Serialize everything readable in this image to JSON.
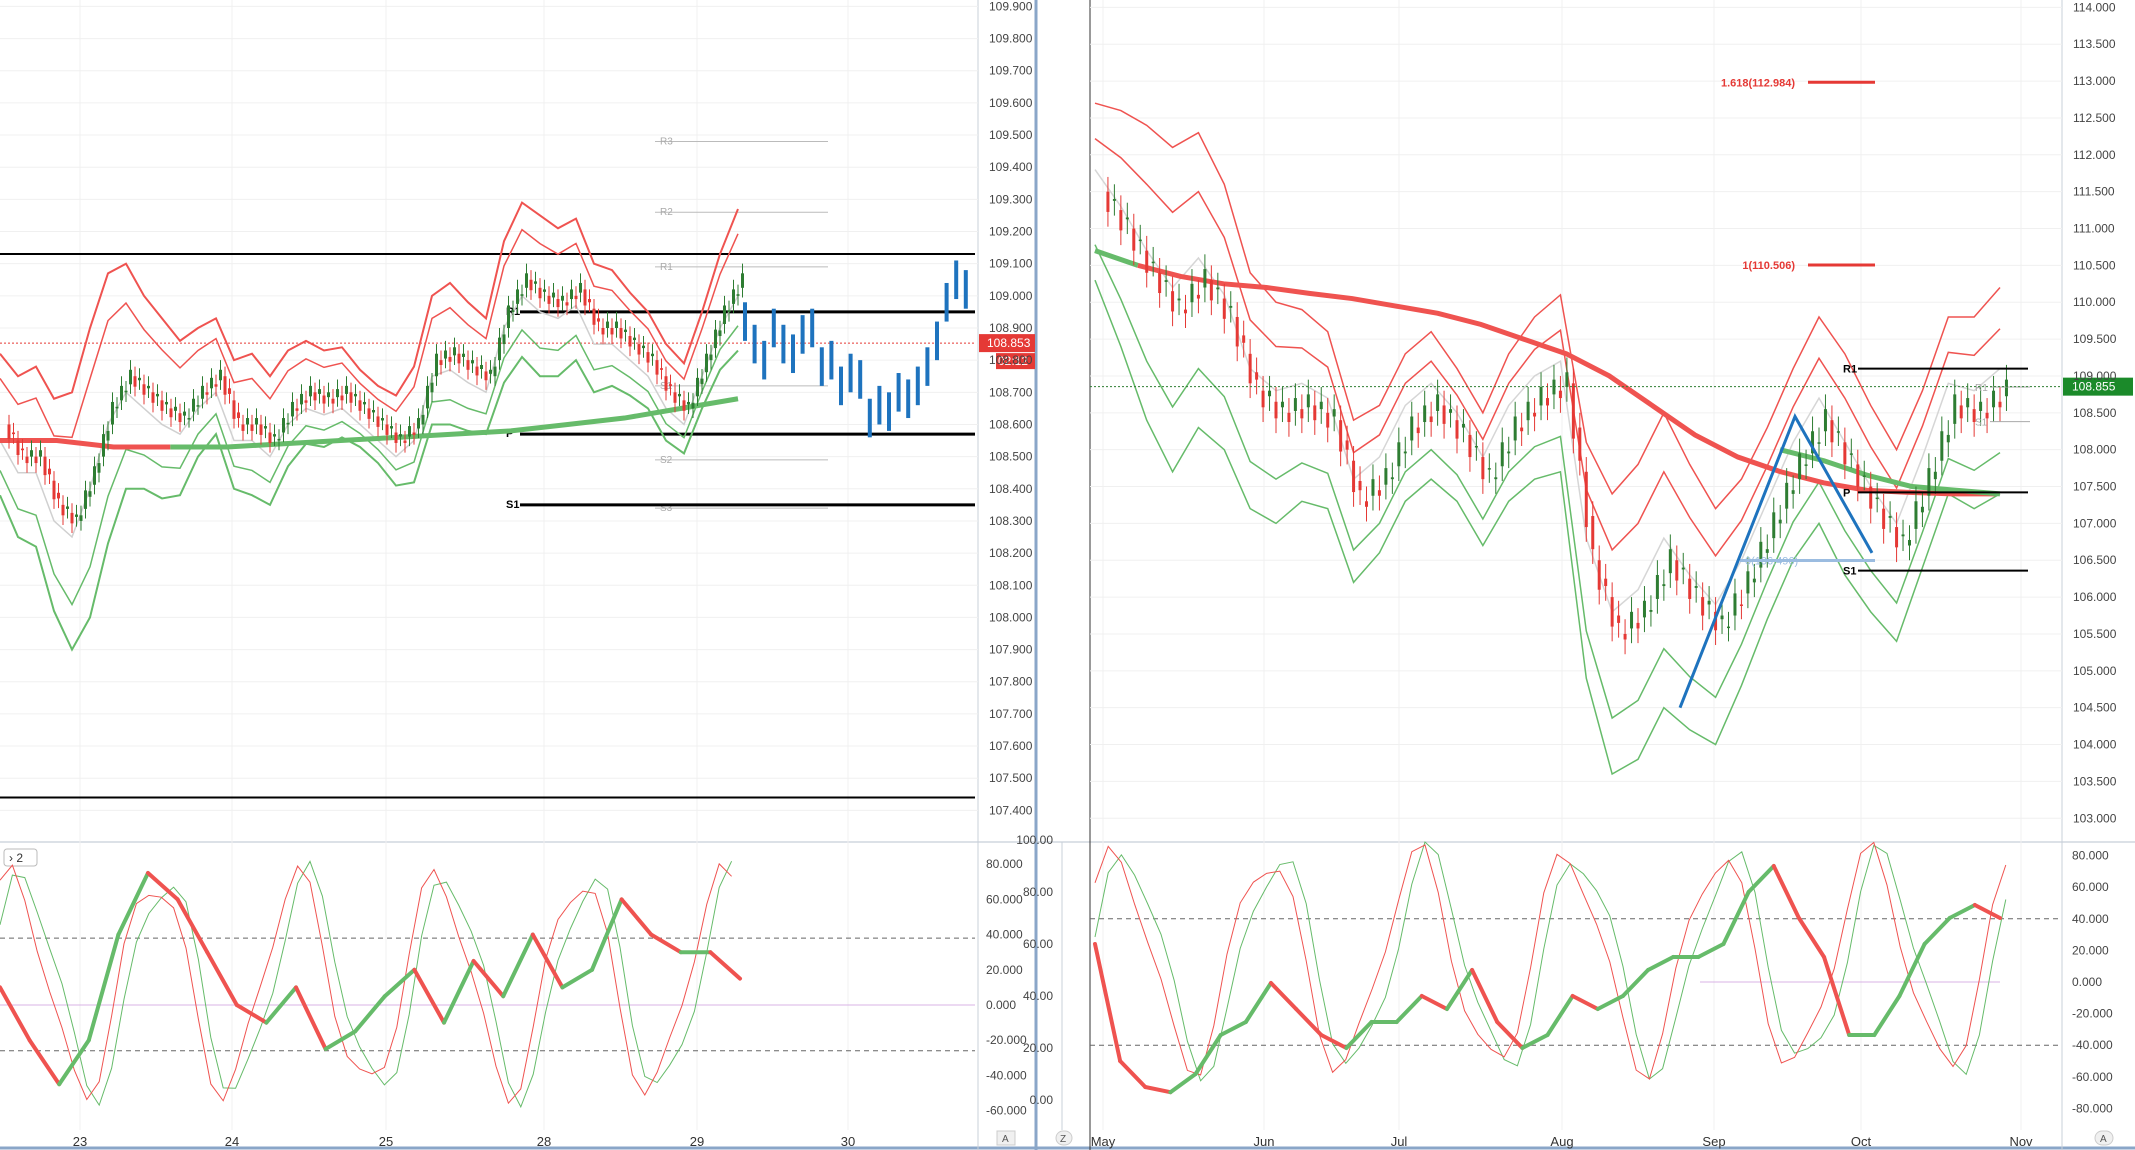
{
  "left": {
    "price_ticks": [
      "109.900",
      "109.800",
      "109.700",
      "109.600",
      "109.500",
      "109.400",
      "109.300",
      "109.200",
      "109.100",
      "109.000",
      "108.900",
      "108.800",
      "108.700",
      "108.600",
      "108.500",
      "108.400",
      "108.300",
      "108.200",
      "108.100",
      "108.000",
      "107.900",
      "107.800",
      "107.700",
      "107.600",
      "107.500",
      "107.400"
    ],
    "price_tag": "108.853",
    "timer_tag": "02:12",
    "x_ticks": [
      "23",
      "24",
      "25",
      "28",
      "29",
      "30"
    ],
    "osc_ticks": [
      "80.000",
      "60.000",
      "40.000",
      "20.000",
      "0.000",
      "-20.000",
      "-40.000",
      "-60.000"
    ],
    "pane_button": "2",
    "corner_button": "A",
    "levels": [
      {
        "label": "R3",
        "y": 109.48,
        "style": "faint"
      },
      {
        "label": "R2",
        "y": 109.26,
        "style": "faint"
      },
      {
        "label": "R1",
        "y": 109.09,
        "style": "faint"
      },
      {
        "label": "S1",
        "y": 108.72,
        "style": "faint"
      },
      {
        "label": "S2",
        "y": 108.49,
        "style": "faint"
      },
      {
        "label": "S3",
        "y": 108.34,
        "style": "faint"
      },
      {
        "label": "R1",
        "y": 108.95,
        "style": "bold"
      },
      {
        "label": "P",
        "y": 108.57,
        "style": "bold"
      },
      {
        "label": "S1",
        "y": 108.35,
        "style": "bold"
      }
    ]
  },
  "right": {
    "price_ticks": [
      "114.000",
      "113.500",
      "113.000",
      "112.500",
      "112.000",
      "111.500",
      "111.000",
      "110.500",
      "110.000",
      "109.500",
      "109.000",
      "108.500",
      "108.000",
      "107.500",
      "107.000",
      "106.500",
      "106.000",
      "105.500",
      "105.000",
      "104.500",
      "104.000",
      "103.500",
      "103.000"
    ],
    "price_tag": "108.855",
    "x_ticks": [
      "May",
      "Jun",
      "Jul",
      "Aug",
      "Sep",
      "Oct",
      "Nov"
    ],
    "osc_ticks_left": [
      "100.00",
      "80.00",
      "60.00",
      "40.00",
      "20.00",
      "0.00"
    ],
    "osc_ticks_right": [
      "80.000",
      "60.000",
      "40.000",
      "20.000",
      "0.000",
      "-20.000",
      "-40.000",
      "-60.000",
      "-80.000"
    ],
    "fib_labels": [
      "1.618(112.984)",
      "1(110.506)",
      "0(106.496)"
    ],
    "pivot_labels": [
      "R1",
      "P",
      "S1",
      "R1",
      "S1"
    ],
    "corner_left": "Z",
    "corner_right": "A"
  },
  "colors": {
    "up": "#2e7d32",
    "down": "#e53935",
    "ma_red": "#ef5350",
    "ma_green": "#66bb6a",
    "band_red": "#ef5350",
    "band_green": "#66bb6a",
    "blue": "#1e73be",
    "axis": "#8aa6c8",
    "grid": "#f0f0f0",
    "tag_red": "#e53935",
    "tag_green": "#1b8a2a"
  },
  "chart_data": [
    {
      "type": "line",
      "title": "",
      "xlabel": "",
      "ylabel": "",
      "x_tick_labels": [
        "23",
        "24",
        "25",
        "28",
        "29",
        "30"
      ],
      "ylim": [
        107.37,
        109.92
      ],
      "last_price": 108.853,
      "series": [
        {
          "values": [
            108.6,
            108.5,
            108.5,
            108.35,
            108.3,
            108.45,
            108.65,
            108.75,
            108.7,
            108.65,
            108.62,
            108.7,
            108.75,
            108.6,
            108.6,
            108.55,
            108.65,
            108.7,
            108.68,
            108.7,
            108.65,
            108.6,
            108.55,
            108.6,
            108.8,
            108.82,
            108.78,
            108.75,
            108.95,
            109.05,
            109.0,
            108.98,
            109.02,
            108.9,
            108.9,
            108.85,
            108.8,
            108.7,
            108.65,
            108.8,
            108.95,
            109.05
          ]
        },
        {
          "values": [
            108.55,
            108.55,
            108.53,
            108.53,
            108.53,
            108.54,
            108.55,
            108.56,
            108.57,
            108.58,
            108.6,
            108.62,
            108.65,
            108.68
          ]
        }
      ]
    },
    {
      "type": "line",
      "title": "",
      "x_tick_labels": [
        "May",
        "Jun",
        "Jul",
        "Aug",
        "Sep",
        "Oct",
        "Nov"
      ],
      "ylim": [
        102.8,
        114.1
      ],
      "last_price": 108.855,
      "fib_levels": [
        112.984,
        110.506,
        106.496
      ],
      "series": [
        {
          "values": [
            111.5,
            111.0,
            110.4,
            109.9,
            110.3,
            109.8,
            108.8,
            108.5,
            108.6,
            108.4,
            107.3,
            107.6,
            108.3,
            108.6,
            108.2,
            107.6,
            108.3,
            108.7,
            108.9,
            106.5,
            105.5,
            105.8,
            106.5,
            106.0,
            105.6,
            106.2,
            107.0,
            107.8,
            108.4,
            107.8,
            107.2,
            106.7,
            107.6,
            108.6,
            108.5,
            108.8
          ]
        },
        {
          "values": [
            110.7,
            110.5,
            110.35,
            110.25,
            110.2,
            110.12,
            110.05,
            109.95,
            109.85,
            109.7,
            109.5,
            109.3,
            109.0,
            108.6,
            108.2,
            107.9,
            107.7,
            107.55,
            107.45,
            107.42,
            107.4,
            107.4
          ]
        },
        {
          "values": [
            108.0,
            107.85,
            107.65,
            107.5,
            107.45,
            107.4
          ]
        }
      ]
    },
    {
      "type": "line",
      "title": "",
      "ylim": [
        -60,
        80
      ],
      "series": [
        {
          "values": [
            10,
            -20,
            -45,
            -20,
            40,
            75,
            60,
            30,
            0,
            -10,
            10,
            -25,
            -15,
            5,
            20,
            -10,
            25,
            5,
            40,
            10,
            20,
            60,
            40,
            30,
            30,
            15
          ]
        },
        {
          "values": [
            -10,
            -20,
            -35,
            -10,
            40,
            70,
            55,
            20,
            -5,
            5,
            -20,
            -10,
            10,
            0,
            -5,
            20,
            35,
            15,
            35,
            45,
            20,
            -10,
            -25
          ]
        }
      ]
    },
    {
      "type": "line",
      "title": "",
      "ylim": [
        0,
        100
      ],
      "series": [
        {
          "values": [
            60,
            15,
            5,
            3,
            10,
            25,
            30,
            45,
            35,
            25,
            20,
            30,
            30,
            40,
            35,
            50,
            30,
            20,
            25,
            40,
            35,
            40,
            50,
            55,
            55,
            60,
            80,
            90,
            70,
            55,
            25,
            25,
            40,
            60,
            70,
            75,
            70
          ]
        },
        {
          "values": [
            60,
            15,
            5,
            5,
            15,
            30,
            40,
            20,
            30,
            25,
            35,
            30,
            40,
            55,
            45,
            30,
            25,
            20,
            40,
            55,
            65,
            60,
            95,
            85,
            60,
            45,
            20,
            30,
            55,
            75,
            70,
            68
          ]
        }
      ]
    }
  ]
}
